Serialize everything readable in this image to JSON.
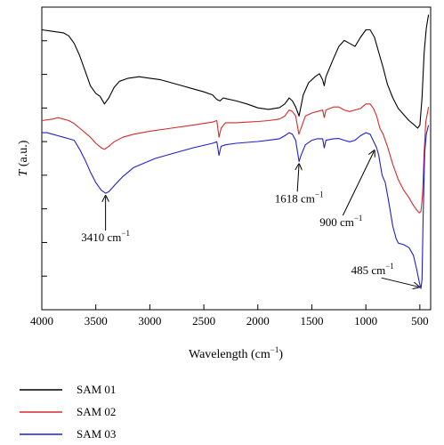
{
  "chart_data": {
    "type": "line",
    "title": "",
    "xlabel": "Wavelength (cm",
    "xlabel_sup": "−1",
    "xlabel_close": ")",
    "ylabel_italic": "T",
    "ylabel_rest": " (a.u.)",
    "xlim": [
      4000,
      400
    ],
    "x_ticks": [
      4000,
      3500,
      3000,
      2500,
      2000,
      1500,
      1000,
      500
    ],
    "y_ticks_count": 8,
    "x_reversed": true,
    "y_tick_labels_shown": false,
    "grid": false,
    "legend_position": "below",
    "series": [
      {
        "name": "SAM 01",
        "color": "#000000",
        "values": [
          [
            4000,
            0.925
          ],
          [
            3900,
            0.92
          ],
          [
            3800,
            0.915
          ],
          [
            3750,
            0.905
          ],
          [
            3700,
            0.88
          ],
          [
            3650,
            0.84
          ],
          [
            3600,
            0.79
          ],
          [
            3550,
            0.74
          ],
          [
            3500,
            0.715
          ],
          [
            3460,
            0.705
          ],
          [
            3420,
            0.68
          ],
          [
            3380,
            0.7
          ],
          [
            3330,
            0.735
          ],
          [
            3280,
            0.755
          ],
          [
            3200,
            0.765
          ],
          [
            3100,
            0.77
          ],
          [
            3000,
            0.765
          ],
          [
            2900,
            0.76
          ],
          [
            2800,
            0.75
          ],
          [
            2700,
            0.74
          ],
          [
            2600,
            0.73
          ],
          [
            2500,
            0.72
          ],
          [
            2420,
            0.71
          ],
          [
            2380,
            0.695
          ],
          [
            2350,
            0.69
          ],
          [
            2320,
            0.7
          ],
          [
            2300,
            0.698
          ],
          [
            2200,
            0.69
          ],
          [
            2100,
            0.68
          ],
          [
            2000,
            0.667
          ],
          [
            1900,
            0.662
          ],
          [
            1800,
            0.668
          ],
          [
            1750,
            0.68
          ],
          [
            1710,
            0.7
          ],
          [
            1680,
            0.69
          ],
          [
            1650,
            0.67
          ],
          [
            1618,
            0.64
          ],
          [
            1580,
            0.71
          ],
          [
            1530,
            0.75
          ],
          [
            1470,
            0.77
          ],
          [
            1430,
            0.78
          ],
          [
            1400,
            0.76
          ],
          [
            1385,
            0.74
          ],
          [
            1370,
            0.77
          ],
          [
            1300,
            0.83
          ],
          [
            1250,
            0.87
          ],
          [
            1200,
            0.89
          ],
          [
            1150,
            0.88
          ],
          [
            1100,
            0.87
          ],
          [
            1050,
            0.9
          ],
          [
            1000,
            0.925
          ],
          [
            960,
            0.925
          ],
          [
            920,
            0.9
          ],
          [
            880,
            0.85
          ],
          [
            840,
            0.8
          ],
          [
            800,
            0.745
          ],
          [
            750,
            0.7
          ],
          [
            700,
            0.665
          ],
          [
            650,
            0.645
          ],
          [
            600,
            0.625
          ],
          [
            550,
            0.61
          ],
          [
            520,
            0.6
          ],
          [
            500,
            0.61
          ],
          [
            480,
            0.7
          ],
          [
            460,
            0.85
          ],
          [
            440,
            0.93
          ],
          [
            420,
            0.975
          ]
        ]
      },
      {
        "name": "SAM 02",
        "color": "#d62a2a",
        "values": [
          [
            4000,
            0.625
          ],
          [
            3900,
            0.63
          ],
          [
            3850,
            0.635
          ],
          [
            3800,
            0.63
          ],
          [
            3750,
            0.625
          ],
          [
            3700,
            0.615
          ],
          [
            3650,
            0.6
          ],
          [
            3600,
            0.585
          ],
          [
            3550,
            0.57
          ],
          [
            3500,
            0.55
          ],
          [
            3450,
            0.535
          ],
          [
            3420,
            0.53
          ],
          [
            3380,
            0.54
          ],
          [
            3330,
            0.555
          ],
          [
            3250,
            0.57
          ],
          [
            3150,
            0.58
          ],
          [
            3000,
            0.59
          ],
          [
            2800,
            0.6
          ],
          [
            2600,
            0.61
          ],
          [
            2420,
            0.62
          ],
          [
            2380,
            0.625
          ],
          [
            2360,
            0.57
          ],
          [
            2340,
            0.6
          ],
          [
            2300,
            0.618
          ],
          [
            2200,
            0.618
          ],
          [
            2100,
            0.62
          ],
          [
            2000,
            0.622
          ],
          [
            1900,
            0.625
          ],
          [
            1800,
            0.63
          ],
          [
            1750,
            0.64
          ],
          [
            1710,
            0.66
          ],
          [
            1680,
            0.655
          ],
          [
            1650,
            0.64
          ],
          [
            1620,
            0.58
          ],
          [
            1600,
            0.6
          ],
          [
            1560,
            0.64
          ],
          [
            1500,
            0.65
          ],
          [
            1450,
            0.655
          ],
          [
            1400,
            0.66
          ],
          [
            1385,
            0.635
          ],
          [
            1370,
            0.66
          ],
          [
            1300,
            0.67
          ],
          [
            1250,
            0.67
          ],
          [
            1200,
            0.66
          ],
          [
            1150,
            0.655
          ],
          [
            1100,
            0.66
          ],
          [
            1050,
            0.665
          ],
          [
            1000,
            0.68
          ],
          [
            960,
            0.68
          ],
          [
            930,
            0.665
          ],
          [
            900,
            0.64
          ],
          [
            870,
            0.6
          ],
          [
            840,
            0.58
          ],
          [
            800,
            0.54
          ],
          [
            750,
            0.48
          ],
          [
            700,
            0.43
          ],
          [
            650,
            0.395
          ],
          [
            600,
            0.37
          ],
          [
            560,
            0.345
          ],
          [
            530,
            0.33
          ],
          [
            505,
            0.32
          ],
          [
            490,
            0.325
          ],
          [
            475,
            0.38
          ],
          [
            460,
            0.52
          ],
          [
            445,
            0.62
          ],
          [
            420,
            0.67
          ]
        ]
      },
      {
        "name": "SAM 03",
        "color": "#1f1fd0",
        "values": [
          [
            4000,
            0.585
          ],
          [
            3950,
            0.585
          ],
          [
            3900,
            0.58
          ],
          [
            3850,
            0.575
          ],
          [
            3800,
            0.57
          ],
          [
            3750,
            0.565
          ],
          [
            3700,
            0.56
          ],
          [
            3650,
            0.53
          ],
          [
            3600,
            0.495
          ],
          [
            3550,
            0.455
          ],
          [
            3500,
            0.42
          ],
          [
            3450,
            0.395
          ],
          [
            3410,
            0.385
          ],
          [
            3380,
            0.39
          ],
          [
            3330,
            0.41
          ],
          [
            3250,
            0.44
          ],
          [
            3150,
            0.47
          ],
          [
            3050,
            0.485
          ],
          [
            2950,
            0.5
          ],
          [
            2800,
            0.515
          ],
          [
            2600,
            0.535
          ],
          [
            2420,
            0.55
          ],
          [
            2380,
            0.555
          ],
          [
            2360,
            0.51
          ],
          [
            2340,
            0.54
          ],
          [
            2300,
            0.545
          ],
          [
            2200,
            0.55
          ],
          [
            2100,
            0.553
          ],
          [
            2000,
            0.556
          ],
          [
            1900,
            0.56
          ],
          [
            1800,
            0.565
          ],
          [
            1750,
            0.575
          ],
          [
            1710,
            0.585
          ],
          [
            1680,
            0.58
          ],
          [
            1650,
            0.56
          ],
          [
            1618,
            0.49
          ],
          [
            1600,
            0.51
          ],
          [
            1560,
            0.545
          ],
          [
            1500,
            0.56
          ],
          [
            1450,
            0.565
          ],
          [
            1400,
            0.565
          ],
          [
            1385,
            0.535
          ],
          [
            1370,
            0.56
          ],
          [
            1300,
            0.565
          ],
          [
            1250,
            0.566
          ],
          [
            1200,
            0.56
          ],
          [
            1150,
            0.555
          ],
          [
            1100,
            0.56
          ],
          [
            1050,
            0.575
          ],
          [
            1000,
            0.585
          ],
          [
            960,
            0.58
          ],
          [
            920,
            0.55
          ],
          [
            900,
            0.535
          ],
          [
            880,
            0.51
          ],
          [
            850,
            0.445
          ],
          [
            820,
            0.42
          ],
          [
            790,
            0.36
          ],
          [
            750,
            0.275
          ],
          [
            720,
            0.235
          ],
          [
            700,
            0.22
          ],
          [
            650,
            0.215
          ],
          [
            600,
            0.205
          ],
          [
            560,
            0.18
          ],
          [
            530,
            0.135
          ],
          [
            505,
            0.09
          ],
          [
            490,
            0.07
          ],
          [
            480,
            0.1
          ],
          [
            470,
            0.3
          ],
          [
            455,
            0.52
          ],
          [
            440,
            0.58
          ],
          [
            420,
            0.61
          ]
        ]
      }
    ],
    "annotations": [
      {
        "text": "3410 cm",
        "sup": "−1",
        "x": 3410,
        "y": 0.385
      },
      {
        "text": "1618 cm",
        "sup": "−1",
        "x": 1618,
        "y": 0.49
      },
      {
        "text": "900 cm",
        "sup": "−1",
        "x": 900,
        "y": 0.535
      },
      {
        "text": "485 cm",
        "sup": "−1",
        "x": 485,
        "y": 0.07
      }
    ]
  }
}
